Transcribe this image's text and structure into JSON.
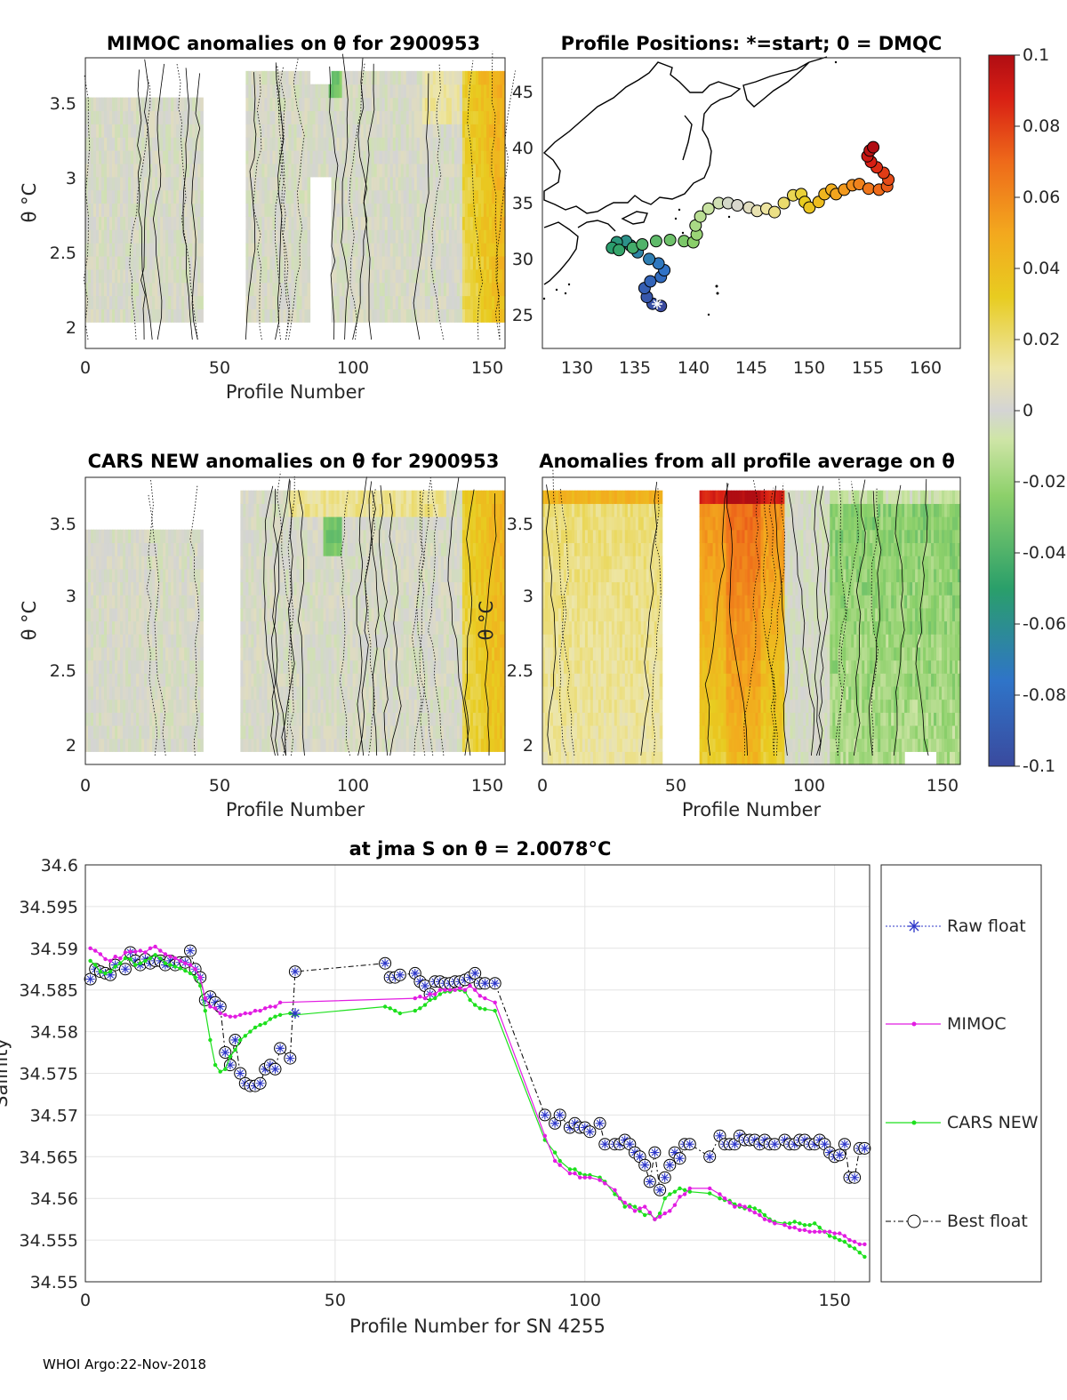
{
  "footer": "WHOI Argo:22-Nov-2018",
  "colorbar": {
    "ticks": [
      "0.1",
      "0.08",
      "0.06",
      "0.04",
      "0.02",
      "0",
      "-0.02",
      "-0.04",
      "-0.06",
      "-0.08",
      "-0.1"
    ],
    "range": [
      -0.1,
      0.1
    ]
  },
  "chart_data": [
    {
      "type": "heatmap",
      "id": "mimoc",
      "title": "MIMOC anomalies on θ  for 2900953",
      "xlabel": "Profile Number",
      "ylabel": "θ °C",
      "xlim": [
        0,
        157
      ],
      "ylim": [
        1.87,
        3.78
      ],
      "xticks": [
        "0",
        "50",
        "100",
        "150"
      ],
      "yticks": [
        "2",
        "2.5",
        "3",
        "3.5"
      ]
    },
    {
      "type": "scatter",
      "id": "positions",
      "title": "Profile Positions: *=start; 0 = DMQC",
      "xlim": [
        127,
        163
      ],
      "ylim": [
        22,
        48
      ],
      "xticks": [
        "130",
        "135",
        "140",
        "145",
        "150",
        "155",
        "160"
      ],
      "yticks": [
        "25",
        "30",
        "35",
        "40",
        "45"
      ],
      "track": [
        [
          137.2,
          25.8
        ],
        [
          136.5,
          26.0
        ],
        [
          136.0,
          26.6
        ],
        [
          135.8,
          27.4
        ],
        [
          136.3,
          28.0
        ],
        [
          137.2,
          28.4
        ],
        [
          137.5,
          29.0
        ],
        [
          137.0,
          29.6
        ],
        [
          136.2,
          30.0
        ],
        [
          135.2,
          30.6
        ],
        [
          134.6,
          31.2
        ],
        [
          134.2,
          31.6
        ],
        [
          133.4,
          31.5
        ],
        [
          133.0,
          31.0
        ],
        [
          133.6,
          30.8
        ],
        [
          134.8,
          31.0
        ],
        [
          135.6,
          31.3
        ],
        [
          136.8,
          31.6
        ],
        [
          138.0,
          31.7
        ],
        [
          139.2,
          31.6
        ],
        [
          140.0,
          31.5
        ],
        [
          140.3,
          32.2
        ],
        [
          140.2,
          33.0
        ],
        [
          140.6,
          33.8
        ],
        [
          141.3,
          34.5
        ],
        [
          142.2,
          35.0
        ],
        [
          143.0,
          35.0
        ],
        [
          143.8,
          34.8
        ],
        [
          144.8,
          34.6
        ],
        [
          145.5,
          34.3
        ],
        [
          146.3,
          34.5
        ],
        [
          147.0,
          34.2
        ],
        [
          147.8,
          35.0
        ],
        [
          148.6,
          35.7
        ],
        [
          149.3,
          35.8
        ],
        [
          149.6,
          35.1
        ],
        [
          150.0,
          34.6
        ],
        [
          150.8,
          35.1
        ],
        [
          151.3,
          35.8
        ],
        [
          151.9,
          36.2
        ],
        [
          152.3,
          35.8
        ],
        [
          153.0,
          36.2
        ],
        [
          153.7,
          36.6
        ],
        [
          154.3,
          36.7
        ],
        [
          155.1,
          36.3
        ],
        [
          156.0,
          36.2
        ],
        [
          156.7,
          36.5
        ],
        [
          156.8,
          37.1
        ],
        [
          156.4,
          37.7
        ],
        [
          155.8,
          38.2
        ],
        [
          155.3,
          38.7
        ],
        [
          155.0,
          39.2
        ],
        [
          155.2,
          39.7
        ],
        [
          155.5,
          40.0
        ]
      ]
    },
    {
      "type": "heatmap",
      "id": "cars",
      "title": "CARS NEW anomalies on θ for 2900953",
      "xlabel": "Profile Number",
      "ylabel": "θ °C",
      "xlim": [
        0,
        157
      ],
      "ylim": [
        1.87,
        3.78
      ],
      "xticks": [
        "0",
        "50",
        "100",
        "150"
      ],
      "yticks": [
        "2",
        "2.5",
        "3",
        "3.5"
      ]
    },
    {
      "type": "heatmap",
      "id": "allavg",
      "title": "Anomalies from all profile average on θ",
      "xlabel": "Profile Number",
      "ylabel": "θ °C",
      "xlim": [
        0,
        157
      ],
      "ylim": [
        1.87,
        3.78
      ],
      "xticks": [
        "0",
        "50",
        "100",
        "150"
      ],
      "yticks": [
        "2",
        "2.5",
        "3",
        "3.5"
      ]
    },
    {
      "type": "line",
      "id": "salinity",
      "title": "at jma S on θ = 2.0078°C",
      "xlabel": "Profile Number for SN 4255",
      "ylabel": "Salinity",
      "xlim": [
        0,
        157
      ],
      "ylim": [
        34.55,
        34.6
      ],
      "xticks": [
        "0",
        "50",
        "100",
        "150"
      ],
      "yticks": [
        "34.6",
        "34.595",
        "34.59",
        "34.585",
        "34.58",
        "34.575",
        "34.57",
        "34.565",
        "34.56",
        "34.555",
        "34.55"
      ],
      "legend": [
        "Raw float",
        "MIMOC",
        "CARS NEW",
        "Best float"
      ],
      "series": [
        {
          "name": "Best float",
          "x": [
            1,
            2,
            3,
            4,
            5,
            6,
            8,
            9,
            10,
            11,
            12,
            13,
            14,
            15,
            16,
            17,
            18,
            19,
            20,
            21,
            22,
            23,
            24,
            25,
            26,
            27,
            28,
            29,
            30,
            31,
            32,
            33,
            34,
            35,
            36,
            37,
            38,
            39,
            41,
            42,
            60,
            61,
            62,
            63,
            66,
            67,
            68,
            69,
            70,
            71,
            72,
            73,
            74,
            75,
            76,
            77,
            78,
            79,
            80,
            82,
            92,
            94,
            95,
            97,
            98,
            99,
            100,
            101,
            103,
            104,
            106,
            107,
            108,
            109,
            110,
            111,
            112,
            113,
            114,
            115,
            116,
            117,
            118,
            119,
            120,
            121,
            125,
            127,
            128,
            129,
            130,
            131,
            132,
            133,
            134,
            135,
            136,
            137,
            138,
            140,
            141,
            142,
            143,
            144,
            145,
            146,
            147,
            148,
            149,
            150,
            151,
            152,
            153,
            154,
            155,
            156
          ],
          "y": [
            34.5863,
            34.5875,
            34.5872,
            34.587,
            34.5868,
            34.588,
            34.5875,
            34.5895,
            34.5885,
            34.588,
            34.5887,
            34.5882,
            34.5885,
            34.5885,
            34.588,
            34.5885,
            34.588,
            34.5883,
            34.5883,
            34.5897,
            34.5875,
            34.5865,
            34.5838,
            34.5842,
            34.5835,
            34.583,
            34.5775,
            34.576,
            34.579,
            34.575,
            34.5738,
            34.5735,
            34.5735,
            34.5738,
            34.5755,
            34.576,
            34.5755,
            34.578,
            34.5768,
            34.5872,
            34.5882,
            34.5865,
            34.5865,
            34.5868,
            34.587,
            34.586,
            34.5855,
            34.5845,
            34.586,
            34.586,
            34.5858,
            34.5858,
            34.586,
            34.586,
            34.5862,
            34.5865,
            34.587,
            34.5858,
            34.5858,
            34.5858,
            34.57,
            34.569,
            34.57,
            34.5685,
            34.569,
            34.5685,
            34.5685,
            34.568,
            34.569,
            34.5665,
            34.5665,
            34.5665,
            34.567,
            34.5665,
            34.5655,
            34.565,
            34.564,
            34.562,
            34.5655,
            34.561,
            34.5625,
            34.564,
            34.5655,
            34.5648,
            34.5665,
            34.5665,
            34.565,
            34.5675,
            34.5665,
            34.5665,
            34.5665,
            34.5675,
            34.567,
            34.567,
            34.567,
            34.5665,
            34.567,
            34.5665,
            34.5665,
            34.567,
            34.5665,
            34.5665,
            34.567,
            34.567,
            34.5665,
            34.5665,
            34.567,
            34.5665,
            34.5655,
            34.565,
            34.5652,
            34.5665,
            34.5625,
            34.5625,
            34.566,
            34.566
          ]
        },
        {
          "name": "MIMOC",
          "x": [
            1,
            2,
            3,
            4,
            5,
            6,
            7,
            8,
            9,
            10,
            11,
            12,
            13,
            14,
            15,
            16,
            17,
            18,
            19,
            20,
            21,
            22,
            23,
            24,
            25,
            26,
            27,
            28,
            29,
            30,
            31,
            32,
            33,
            34,
            35,
            36,
            37,
            38,
            39,
            66,
            67,
            68,
            69,
            70,
            71,
            72,
            73,
            74,
            75,
            76,
            77,
            78,
            79,
            80,
            82,
            92,
            94,
            95,
            97,
            98,
            99,
            100,
            101,
            103,
            104,
            106,
            107,
            108,
            109,
            110,
            111,
            112,
            113,
            114,
            115,
            116,
            117,
            118,
            119,
            120,
            121,
            125,
            127,
            128,
            129,
            130,
            131,
            132,
            133,
            134,
            135,
            136,
            137,
            138,
            140,
            141,
            142,
            143,
            144,
            145,
            146,
            147,
            148,
            149,
            150,
            151,
            152,
            153,
            154,
            155,
            156
          ],
          "y": [
            34.59,
            34.5897,
            34.5893,
            34.5887,
            34.5885,
            34.589,
            34.5888,
            34.5895,
            34.5896,
            34.5896,
            34.5897,
            34.5895,
            34.59,
            34.5902,
            34.5897,
            34.5893,
            34.589,
            34.5888,
            34.5885,
            34.5882,
            34.588,
            34.5875,
            34.5865,
            34.584,
            34.583,
            34.5828,
            34.5822,
            34.582,
            34.5818,
            34.5818,
            34.582,
            34.5822,
            34.5822,
            34.5825,
            34.5825,
            34.5828,
            34.583,
            34.583,
            34.5835,
            34.584,
            34.5842,
            34.584,
            34.5845,
            34.5845,
            34.585,
            34.585,
            34.585,
            34.585,
            34.5852,
            34.585,
            34.5855,
            34.585,
            34.5843,
            34.584,
            34.5835,
            34.5675,
            34.5645,
            34.564,
            34.563,
            34.563,
            34.5625,
            34.5625,
            34.5625,
            34.5622,
            34.5618,
            34.561,
            34.56,
            34.5595,
            34.559,
            34.5585,
            34.5588,
            34.559,
            34.5583,
            34.5575,
            34.5578,
            34.5582,
            34.5585,
            34.5592,
            34.5602,
            34.5605,
            34.5612,
            34.5612,
            34.5605,
            34.56,
            34.5595,
            34.559,
            34.5592,
            34.559,
            34.5586,
            34.5583,
            34.558,
            34.5575,
            34.5573,
            34.557,
            34.5568,
            34.5565,
            34.5565,
            34.5562,
            34.5562,
            34.556,
            34.556,
            34.556,
            34.556,
            34.556,
            34.5558,
            34.5558,
            34.5555,
            34.555,
            34.5548,
            34.5545,
            34.5545
          ]
        },
        {
          "name": "CARS NEW",
          "x": [
            1,
            2,
            3,
            4,
            5,
            6,
            7,
            8,
            9,
            10,
            11,
            12,
            13,
            14,
            15,
            16,
            17,
            18,
            19,
            20,
            21,
            22,
            23,
            24,
            25,
            26,
            27,
            28,
            29,
            30,
            31,
            32,
            33,
            34,
            35,
            36,
            37,
            38,
            39,
            41,
            42,
            60,
            61,
            62,
            63,
            66,
            67,
            68,
            69,
            70,
            71,
            72,
            73,
            74,
            75,
            76,
            77,
            78,
            79,
            80,
            82,
            92,
            94,
            95,
            97,
            98,
            99,
            100,
            101,
            103,
            104,
            106,
            107,
            108,
            109,
            110,
            111,
            112,
            113,
            114,
            115,
            116,
            117,
            118,
            119,
            120,
            121,
            125,
            127,
            128,
            129,
            130,
            131,
            132,
            133,
            134,
            135,
            136,
            137,
            138,
            140,
            141,
            142,
            143,
            144,
            145,
            146,
            147,
            148,
            149,
            150,
            151,
            152,
            153,
            154,
            155,
            156
          ],
          "y": [
            34.5885,
            34.588,
            34.5872,
            34.587,
            34.5872,
            34.5878,
            34.5882,
            34.5888,
            34.5887,
            34.588,
            34.5882,
            34.5885,
            34.5888,
            34.5892,
            34.5888,
            34.5882,
            34.588,
            34.5878,
            34.5876,
            34.5873,
            34.587,
            34.5865,
            34.5855,
            34.5825,
            34.579,
            34.576,
            34.5752,
            34.5755,
            34.577,
            34.5778,
            34.579,
            34.5795,
            34.58,
            34.5805,
            34.5808,
            34.581,
            34.5815,
            34.5818,
            34.582,
            34.5822,
            34.582,
            34.583,
            34.5828,
            34.5825,
            34.5822,
            34.5825,
            34.5828,
            34.5832,
            34.5838,
            34.584,
            34.5845,
            34.5848,
            34.5848,
            34.585,
            34.585,
            34.5848,
            34.5838,
            34.5832,
            34.5828,
            34.5827,
            34.5825,
            34.567,
            34.5655,
            34.5645,
            34.5635,
            34.5635,
            34.563,
            34.5628,
            34.5628,
            34.5625,
            34.562,
            34.5605,
            34.56,
            34.559,
            34.5592,
            34.559,
            34.5585,
            34.558,
            34.5582,
            34.5575,
            34.5582,
            34.56,
            34.5605,
            34.5608,
            34.5612,
            34.561,
            34.5608,
            34.5606,
            34.56,
            34.5598,
            34.5597,
            34.5593,
            34.559,
            34.5588,
            34.559,
            34.5588,
            34.5585,
            34.558,
            34.5575,
            34.5572,
            34.557,
            34.557,
            34.5572,
            34.557,
            34.5568,
            34.5568,
            34.557,
            34.5565,
            34.556,
            34.5555,
            34.5553,
            34.555,
            34.5548,
            34.5543,
            34.554,
            34.5535,
            34.553
          ]
        },
        {
          "name": "Raw float",
          "x": [
            42
          ],
          "y": [
            34.5822
          ]
        }
      ]
    }
  ]
}
